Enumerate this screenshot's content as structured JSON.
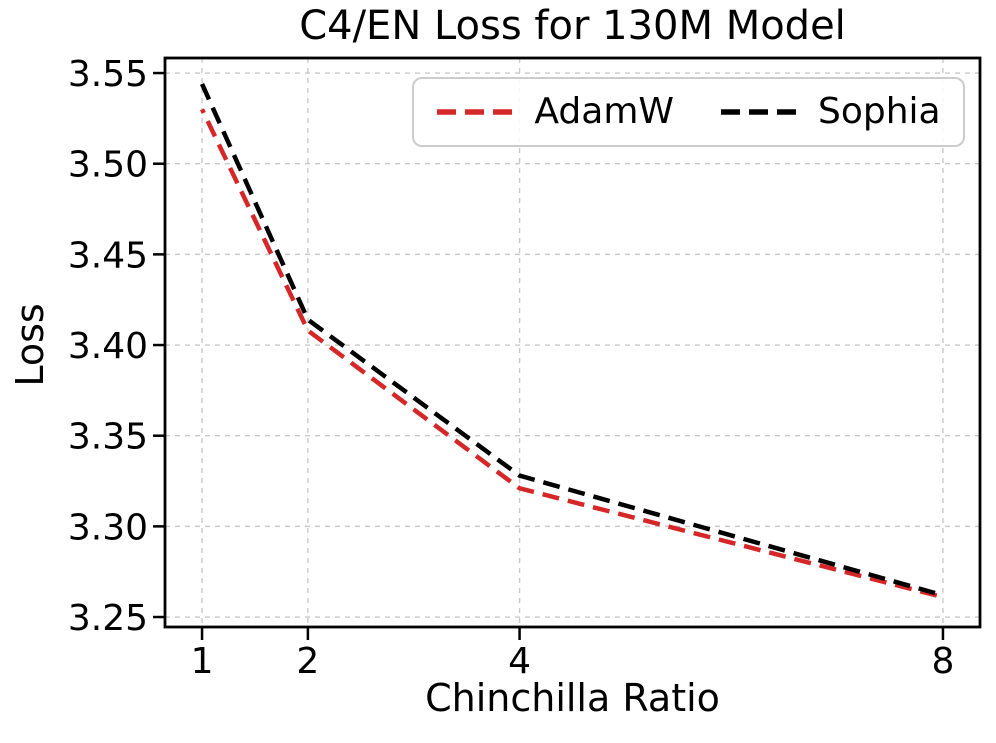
{
  "chart_data": {
    "type": "line",
    "title": "C4/EN Loss for 130M Model",
    "xlabel": "Chinchilla Ratio",
    "ylabel": "Loss",
    "x": [
      1,
      2,
      4,
      8
    ],
    "x_tick_labels": [
      "1",
      "2",
      "4",
      "8"
    ],
    "y_ticks": [
      3.25,
      3.3,
      3.35,
      3.4,
      3.45,
      3.5,
      3.55
    ],
    "xlim": [
      0.65,
      8.35
    ],
    "ylim": [
      3.2445,
      3.5583
    ],
    "grid": true,
    "grid_color": "#c9c9c9",
    "axis_scale_x": "linear",
    "legend_position": "upper center",
    "series": [
      {
        "name": "AdamW",
        "color": "#d62728",
        "linestyle": "dashed",
        "values": [
          3.53,
          3.408,
          3.321,
          3.261
        ]
      },
      {
        "name": "Sophia",
        "color": "#000000",
        "linestyle": "dashed",
        "values": [
          3.544,
          3.414,
          3.328,
          3.262
        ]
      }
    ]
  }
}
